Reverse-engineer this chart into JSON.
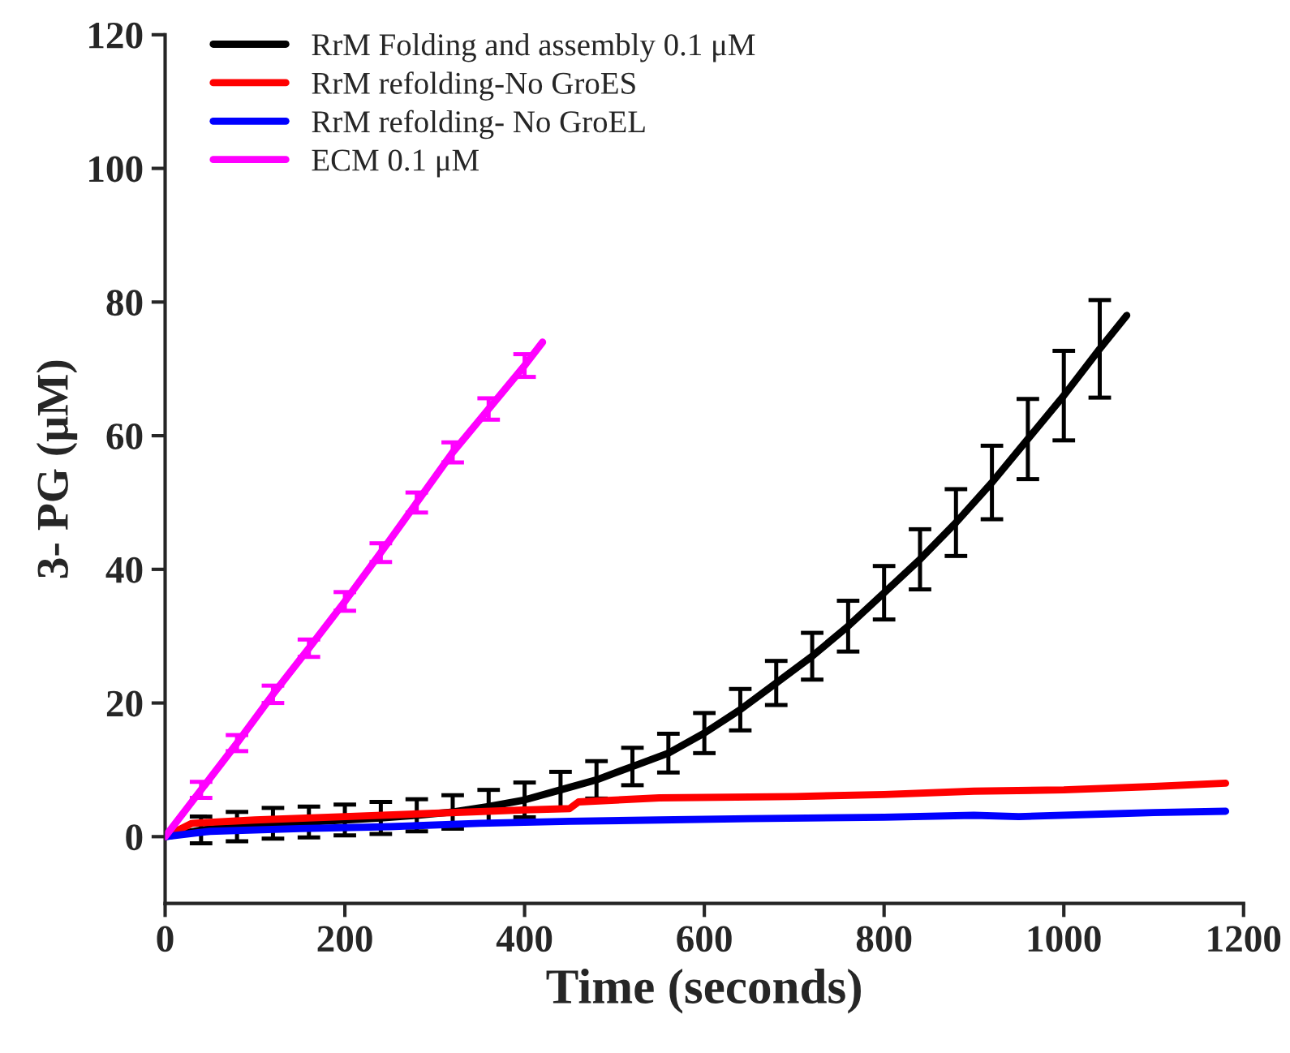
{
  "chart_data": {
    "type": "line",
    "xlabel": "Time (seconds)",
    "ylabel": "3- PG (μM)",
    "xlim": [
      0,
      1200
    ],
    "ylim": [
      -10,
      120
    ],
    "xticks": [
      0,
      200,
      400,
      600,
      800,
      1000,
      1200
    ],
    "yticks": [
      0,
      20,
      40,
      60,
      80,
      100,
      120
    ],
    "grid": false,
    "legend": "top left",
    "marker": "none",
    "line_style": "solid",
    "series": [
      {
        "name": "RrM Folding and assembly 0.1 μM",
        "color": "#000000",
        "x": [
          0,
          40,
          80,
          120,
          160,
          200,
          240,
          280,
          320,
          360,
          400,
          440,
          480,
          520,
          560,
          600,
          640,
          680,
          720,
          760,
          800,
          840,
          880,
          920,
          960,
          1000,
          1040,
          1070
        ],
        "values": [
          0,
          1,
          1.5,
          2,
          2.2,
          2.5,
          2.8,
          3.2,
          3.7,
          4.5,
          5.5,
          7,
          8.5,
          10.5,
          12.5,
          15.5,
          19,
          23,
          27,
          31.5,
          36.5,
          41.5,
          47,
          53,
          59.5,
          66,
          73,
          78
        ],
        "errors": [
          null,
          2,
          2.2,
          2.3,
          2.3,
          2.3,
          2.4,
          2.4,
          2.5,
          2.5,
          2.6,
          2.7,
          2.8,
          2.8,
          2.9,
          3,
          3.1,
          3.3,
          3.5,
          3.8,
          4,
          4.5,
          5,
          5.5,
          6,
          6.7,
          7.3,
          null
        ]
      },
      {
        "name": "RrM refolding-No GroES",
        "color": "#ff0000",
        "x": [
          0,
          30,
          100,
          200,
          300,
          400,
          450,
          460,
          550,
          700,
          800,
          900,
          1000,
          1100,
          1180
        ],
        "values": [
          0,
          2,
          2.5,
          3,
          3.5,
          4,
          4.2,
          5.2,
          5.8,
          6,
          6.3,
          6.8,
          7,
          7.5,
          8
        ]
      },
      {
        "name": "RrM refolding- No GroEL",
        "color": "#0000ff",
        "x": [
          0,
          50,
          150,
          250,
          350,
          450,
          550,
          650,
          800,
          900,
          950,
          1050,
          1100,
          1180
        ],
        "values": [
          0,
          0.8,
          1.2,
          1.5,
          2,
          2.3,
          2.5,
          2.7,
          2.9,
          3.2,
          3,
          3.4,
          3.6,
          3.8
        ]
      },
      {
        "name": "ECM 0.1 μM",
        "color": "#ff00ff",
        "x": [
          0,
          40,
          80,
          120,
          160,
          200,
          240,
          280,
          320,
          360,
          400,
          420
        ],
        "values": [
          0,
          7,
          14,
          21.3,
          28.2,
          35.2,
          42.5,
          50,
          57.5,
          64,
          70.5,
          74
        ],
        "errors": [
          null,
          1.2,
          1.2,
          1.3,
          1.3,
          1.4,
          1.4,
          1.5,
          1.5,
          1.6,
          1.7,
          null
        ]
      }
    ]
  }
}
